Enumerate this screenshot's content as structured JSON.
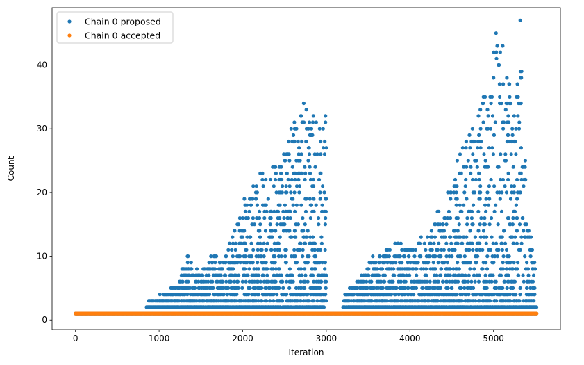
{
  "chart_data": {
    "type": "scatter",
    "xlabel": "Iteration",
    "ylabel": "Count",
    "xlim": [
      -280,
      5800
    ],
    "ylim": [
      -1.5,
      49
    ],
    "x_ticks": [
      0,
      1000,
      2000,
      3000,
      4000,
      5000
    ],
    "y_ticks": [
      0,
      10,
      20,
      30,
      40
    ],
    "legend": {
      "placement": "top-left"
    },
    "series": [
      {
        "name": "Chain 0 proposed",
        "color": "#1f77b4",
        "total_iterations": 5520,
        "baseline_value": 1,
        "dense_ranges": [
          [
            850,
            3000
          ],
          [
            3200,
            5520
          ]
        ],
        "envelope": [
          [
            850,
            2
          ],
          [
            1000,
            3
          ],
          [
            1200,
            5
          ],
          [
            1350,
            10
          ],
          [
            1500,
            7
          ],
          [
            1600,
            10
          ],
          [
            1800,
            10
          ],
          [
            2000,
            18
          ],
          [
            2200,
            23
          ],
          [
            2400,
            24
          ],
          [
            2600,
            30
          ],
          [
            2730,
            34
          ],
          [
            2850,
            31
          ],
          [
            2990,
            32
          ],
          [
            3010,
            2
          ],
          [
            3200,
            3
          ],
          [
            3400,
            6
          ],
          [
            3550,
            9
          ],
          [
            3800,
            12
          ],
          [
            4000,
            11
          ],
          [
            4200,
            13
          ],
          [
            4450,
            19
          ],
          [
            4600,
            26
          ],
          [
            4800,
            32
          ],
          [
            4870,
            35
          ],
          [
            4950,
            35
          ],
          [
            5030,
            45
          ],
          [
            5110,
            43
          ],
          [
            5190,
            37
          ],
          [
            5250,
            33
          ],
          [
            5320,
            47
          ],
          [
            5400,
            18
          ],
          [
            5500,
            8
          ]
        ],
        "highlighted_points": [
          {
            "x": 1340,
            "y": 10
          },
          {
            "x": 2030,
            "y": 18
          },
          {
            "x": 2210,
            "y": 23
          },
          {
            "x": 2440,
            "y": 24
          },
          {
            "x": 2580,
            "y": 30
          },
          {
            "x": 2730,
            "y": 34
          },
          {
            "x": 2840,
            "y": 31
          },
          {
            "x": 2880,
            "y": 31
          },
          {
            "x": 2990,
            "y": 32
          },
          {
            "x": 4880,
            "y": 35
          },
          {
            "x": 4960,
            "y": 35
          },
          {
            "x": 5030,
            "y": 45
          },
          {
            "x": 5110,
            "y": 43
          },
          {
            "x": 5190,
            "y": 37
          },
          {
            "x": 5320,
            "y": 47
          },
          {
            "x": 5300,
            "y": 34
          },
          {
            "x": 4600,
            "y": 26
          },
          {
            "x": 4720,
            "y": 27
          },
          {
            "x": 4820,
            "y": 32
          }
        ]
      },
      {
        "name": "Chain 0 accepted",
        "color": "#ff7f0e",
        "total_iterations": 5520,
        "constant_value": 1
      }
    ]
  }
}
